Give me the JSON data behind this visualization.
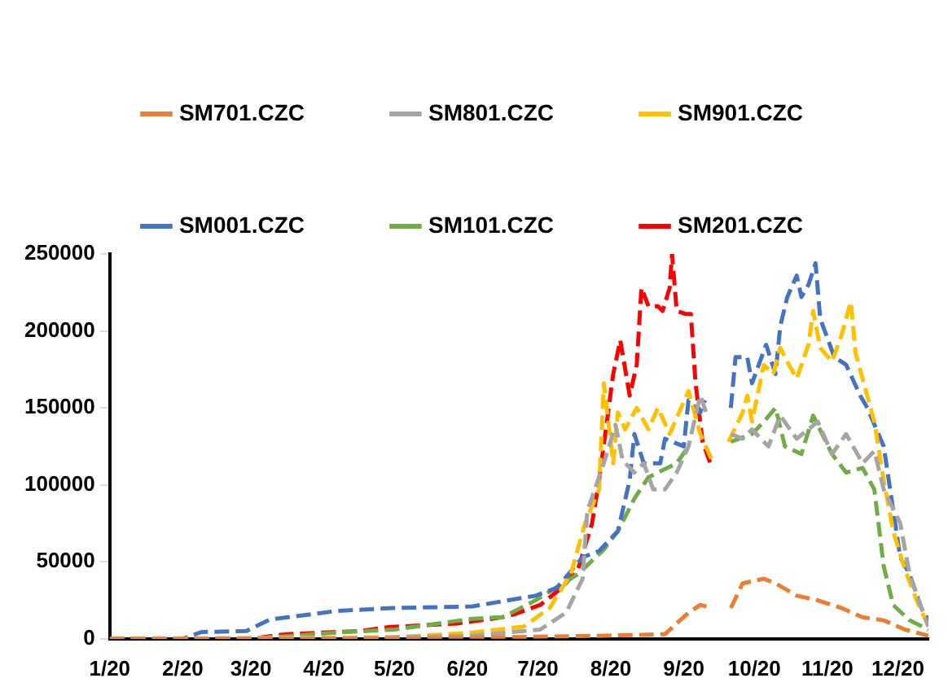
{
  "chart_data": {
    "type": "line",
    "legend": "top",
    "grid": false,
    "line_style": "dashed",
    "marker": "none",
    "xlim": [
      "2020-01-01",
      "2020-12-14"
    ],
    "xticks": [
      {
        "value": "2020-01-01",
        "label": "1/20"
      },
      {
        "value": "2020-02-01",
        "label": "2/20"
      },
      {
        "value": "2020-03-01",
        "label": "3/20"
      },
      {
        "value": "2020-04-01",
        "label": "4/20"
      },
      {
        "value": "2020-05-01",
        "label": "5/20"
      },
      {
        "value": "2020-06-01",
        "label": "6/20"
      },
      {
        "value": "2020-07-01",
        "label": "7/20"
      },
      {
        "value": "2020-08-01",
        "label": "8/20"
      },
      {
        "value": "2020-09-01",
        "label": "9/20"
      },
      {
        "value": "2020-10-01",
        "label": "10/20"
      },
      {
        "value": "2020-11-01",
        "label": "11/20"
      },
      {
        "value": "2020-12-01",
        "label": "12/20"
      }
    ],
    "ylim": [
      0,
      250000
    ],
    "yticks": [
      0,
      50000,
      100000,
      150000,
      200000,
      250000
    ],
    "series": [
      {
        "name": "SM701.CZC",
        "color": "#ed7d31",
        "x": [
          "2020-01-01",
          "2020-05-01",
          "2020-07-29",
          "2020-08-24",
          "2020-09-03",
          "2020-09-08",
          "2020-09-13",
          "2020-09-16",
          "2020-09-21",
          "2020-09-26",
          "2020-10-05",
          "2020-10-10",
          "2020-10-19",
          "2020-10-28",
          "2020-11-07",
          "2020-11-16",
          "2020-11-25",
          "2020-12-04",
          "2020-12-14"
        ],
        "values": [
          0,
          0,
          2000,
          3000,
          17000,
          22000,
          20000,
          null,
          20000,
          36000,
          39000,
          36000,
          28000,
          25000,
          20000,
          14000,
          12000,
          6000,
          2000
        ]
      },
      {
        "name": "SM801.CZC",
        "color": "#a5a5a5",
        "x": [
          "2020-01-01",
          "2020-04-01",
          "2020-06-03",
          "2020-07-02",
          "2020-07-13",
          "2020-07-20",
          "2020-07-22",
          "2020-07-29",
          "2020-08-03",
          "2020-08-06",
          "2020-08-11",
          "2020-08-15",
          "2020-08-19",
          "2020-08-24",
          "2020-08-29",
          "2020-09-03",
          "2020-09-08",
          "2020-09-11",
          "2020-09-16",
          "2020-09-21",
          "2020-09-26",
          "2020-09-30",
          "2020-10-07",
          "2020-10-12",
          "2020-10-19",
          "2020-10-28",
          "2020-11-03",
          "2020-11-09",
          "2020-11-16",
          "2020-11-21",
          "2020-11-25",
          "2020-12-02",
          "2020-12-06",
          "2020-12-11",
          "2020-12-14"
        ],
        "values": [
          0,
          0,
          2000,
          6000,
          17000,
          39000,
          83000,
          114000,
          139000,
          116000,
          108000,
          114000,
          97000,
          97000,
          108000,
          125000,
          158000,
          145000,
          null,
          133000,
          130000,
          136000,
          125000,
          145000,
          130000,
          141000,
          120000,
          133000,
          114000,
          122000,
          97000,
          75000,
          42000,
          20000,
          8000
        ]
      },
      {
        "name": "SM901.CZC",
        "color": "#ffc000",
        "x": [
          "2020-01-01",
          "2020-05-01",
          "2020-06-03",
          "2020-06-25",
          "2020-07-06",
          "2020-07-15",
          "2020-07-21",
          "2020-07-27",
          "2020-07-29",
          "2020-08-02",
          "2020-08-04",
          "2020-08-07",
          "2020-08-12",
          "2020-08-17",
          "2020-08-21",
          "2020-08-26",
          "2020-08-30",
          "2020-09-03",
          "2020-09-08",
          "2020-09-13",
          "2020-09-16",
          "2020-09-20",
          "2020-09-26",
          "2020-09-28",
          "2020-09-30",
          "2020-10-05",
          "2020-10-09",
          "2020-10-12",
          "2020-10-15",
          "2020-10-19",
          "2020-10-24",
          "2020-10-26",
          "2020-10-29",
          "2020-11-03",
          "2020-11-07",
          "2020-11-11",
          "2020-11-13",
          "2020-11-16",
          "2020-11-21",
          "2020-11-25",
          "2020-11-29",
          "2020-12-04",
          "2020-12-09",
          "2020-12-14"
        ],
        "values": [
          0,
          1000,
          4000,
          8000,
          20000,
          42000,
          75000,
          97000,
          166000,
          114000,
          147000,
          136000,
          150000,
          136000,
          150000,
          133000,
          147000,
          161000,
          133000,
          116000,
          null,
          128000,
          147000,
          158000,
          141000,
          178000,
          172000,
          189000,
          180000,
          169000,
          191000,
          213000,
          189000,
          180000,
          197000,
          219000,
          186000,
          169000,
          141000,
          103000,
          70000,
          45000,
          25000,
          8000
        ]
      },
      {
        "name": "SM001.CZC",
        "color": "#4472c4",
        "x": [
          "2020-01-01",
          "2020-02-01",
          "2020-02-09",
          "2020-02-28",
          "2020-03-09",
          "2020-04-06",
          "2020-04-30",
          "2020-06-03",
          "2020-06-30",
          "2020-07-09",
          "2020-07-20",
          "2020-07-27",
          "2020-08-04",
          "2020-08-09",
          "2020-08-11",
          "2020-08-15",
          "2020-08-22",
          "2020-08-24",
          "2020-09-01",
          "2020-09-03",
          "2020-09-08",
          "2020-09-10",
          "2020-09-16",
          "2020-09-21",
          "2020-09-23",
          "2020-09-28",
          "2020-09-30",
          "2020-10-06",
          "2020-10-10",
          "2020-10-12",
          "2020-10-15",
          "2020-10-19",
          "2020-10-21",
          "2020-10-24",
          "2020-10-27",
          "2020-10-29",
          "2020-11-04",
          "2020-11-09",
          "2020-11-15",
          "2020-11-18",
          "2020-11-25",
          "2020-12-02",
          "2020-12-06",
          "2020-12-11",
          "2020-12-14"
        ],
        "values": [
          0,
          0,
          4400,
          5000,
          12500,
          18000,
          20000,
          21000,
          28000,
          33000,
          53000,
          57000,
          70000,
          103000,
          133000,
          114000,
          114000,
          130000,
          125000,
          155000,
          147000,
          155000,
          null,
          150000,
          183000,
          183000,
          166000,
          191000,
          172000,
          203000,
          222000,
          236000,
          222000,
          230000,
          244000,
          208000,
          183000,
          178000,
          158000,
          150000,
          125000,
          53000,
          42000,
          20000,
          12000
        ]
      },
      {
        "name": "SM101.CZC",
        "color": "#70ad47",
        "x": [
          "2020-01-01",
          "2020-03-01",
          "2020-04-06",
          "2020-05-01",
          "2020-06-03",
          "2020-06-16",
          "2020-06-30",
          "2020-07-18",
          "2020-07-29",
          "2020-08-04",
          "2020-08-11",
          "2020-08-17",
          "2020-08-29",
          "2020-09-03",
          "2020-09-16",
          "2020-09-21",
          "2020-09-30",
          "2020-10-05",
          "2020-10-10",
          "2020-10-14",
          "2020-10-21",
          "2020-10-26",
          "2020-11-03",
          "2020-11-09",
          "2020-11-16",
          "2020-11-21",
          "2020-11-25",
          "2020-11-29",
          "2020-12-06",
          "2020-12-14"
        ],
        "values": [
          0,
          0,
          4000,
          6000,
          13000,
          14000,
          25000,
          42000,
          58000,
          70000,
          91000,
          105000,
          114000,
          125000,
          null,
          128000,
          133000,
          141000,
          150000,
          125000,
          120000,
          145000,
          120000,
          108000,
          111000,
          97000,
          47000,
          22000,
          12000,
          6000
        ]
      },
      {
        "name": "SM201.CZC",
        "color": "#ff0000",
        "x": [
          "2020-01-01",
          "2020-03-01",
          "2020-03-16",
          "2020-04-16",
          "2020-04-28",
          "2020-05-28",
          "2020-06-16",
          "2020-06-21",
          "2020-07-02",
          "2020-07-11",
          "2020-07-18",
          "2020-07-24",
          "2020-07-27",
          "2020-08-02",
          "2020-08-05",
          "2020-08-09",
          "2020-08-12",
          "2020-08-14",
          "2020-08-17",
          "2020-08-21",
          "2020-08-23",
          "2020-08-26",
          "2020-08-27",
          "2020-08-29",
          "2020-09-02",
          "2020-09-04",
          "2020-09-06",
          "2020-09-09",
          "2020-09-13"
        ],
        "values": [
          0,
          0,
          3000,
          5000,
          7500,
          10000,
          14000,
          16000,
          22000,
          33000,
          45000,
          75000,
          103000,
          172000,
          194000,
          158000,
          178000,
          228000,
          216000,
          216000,
          213000,
          228000,
          250000,
          213000,
          211000,
          211000,
          166000,
          128000,
          111000
        ]
      }
    ]
  }
}
